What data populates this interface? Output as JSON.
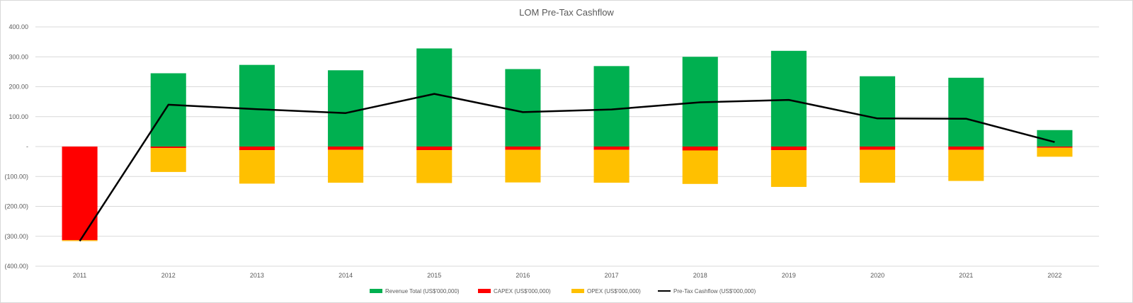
{
  "chart_data": {
    "type": "bar",
    "title": "LOM Pre-Tax Cashflow",
    "categories": [
      "2011",
      "2012",
      "2013",
      "2014",
      "2015",
      "2016",
      "2017",
      "2018",
      "2019",
      "2020",
      "2021",
      "2022"
    ],
    "ylim": [
      -400,
      400
    ],
    "yticks": [
      400,
      300,
      200,
      100,
      0,
      -100,
      -200,
      -300,
      -400
    ],
    "ytick_labels": [
      "400.00",
      "300.00",
      "200.00",
      "100.00",
      "-",
      "(100.00)",
      "(200.00)",
      "(300.00)",
      "(400.00)"
    ],
    "grid": true,
    "legend_position": "bottom",
    "series": [
      {
        "name": "Revenue Total (US$'000,000)",
        "kind": "bar",
        "color": "#00b050",
        "values": [
          0,
          245,
          273,
          255,
          328,
          259,
          269,
          300,
          320,
          235,
          230,
          55
        ]
      },
      {
        "name": "CAPEX (US$'000,000)",
        "kind": "bar",
        "color": "#ff0000",
        "values": [
          -313,
          -5,
          -12,
          -11,
          -12,
          -11,
          -11,
          -13,
          -12,
          -11,
          -11,
          -4
        ]
      },
      {
        "name": "OPEX (US$'000,000)",
        "kind": "bar",
        "color": "#ffc000",
        "values": [
          -3,
          -80,
          -112,
          -110,
          -110,
          -109,
          -110,
          -112,
          -123,
          -110,
          -104,
          -30
        ]
      },
      {
        "name": "Pre-Tax Cashflow (US$'000,000)",
        "kind": "line",
        "color": "#000000",
        "values": [
          -316,
          140,
          125,
          112,
          176,
          115,
          124,
          148,
          156,
          94,
          93,
          15
        ]
      }
    ]
  }
}
